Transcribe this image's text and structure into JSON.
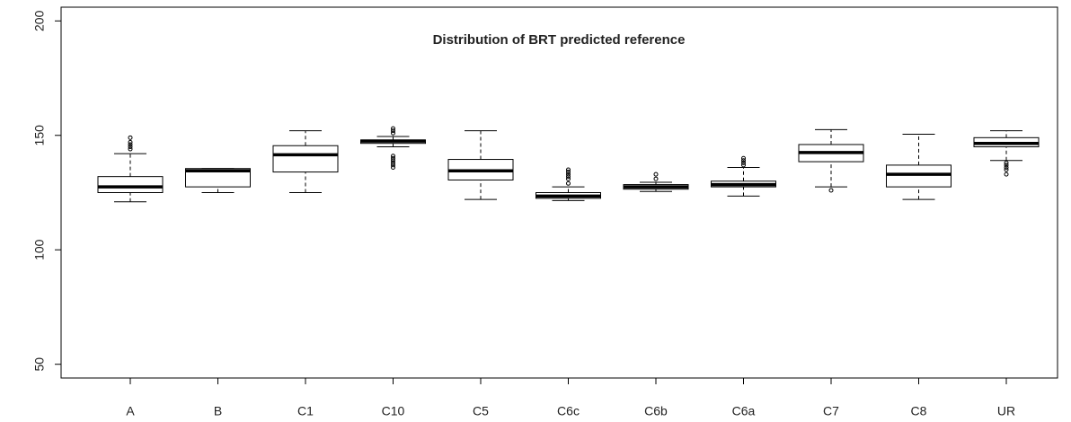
{
  "chart_data": {
    "type": "boxplot",
    "title": "Distribution of BRT predicted reference",
    "categories": [
      "A",
      "B",
      "C1",
      "C10",
      "C5",
      "C6c",
      "C6b",
      "C6a",
      "C7",
      "C8",
      "UR"
    ],
    "boxes": [
      {
        "min": 121,
        "q1": 125,
        "median": 127.5,
        "q3": 132,
        "max": 142,
        "outliers": [
          144,
          145,
          146,
          147,
          149
        ]
      },
      {
        "min": 125,
        "q1": 127.5,
        "median": 134.5,
        "q3": 135.5,
        "max": 135.5,
        "outliers": []
      },
      {
        "min": 125,
        "q1": 134,
        "median": 141.5,
        "q3": 145.5,
        "max": 152,
        "outliers": []
      },
      {
        "min": 145,
        "q1": 146.5,
        "median": 147.5,
        "q3": 148,
        "max": 149.5,
        "outliers": [
          136,
          137,
          138,
          139,
          140,
          141,
          151,
          152,
          153
        ]
      },
      {
        "min": 122,
        "q1": 130.5,
        "median": 134.5,
        "q3": 139.5,
        "max": 152,
        "outliers": []
      },
      {
        "min": 121.5,
        "q1": 122.5,
        "median": 123.5,
        "q3": 125,
        "max": 127.5,
        "outliers": [
          129,
          131,
          132,
          133,
          134,
          135
        ]
      },
      {
        "min": 125.5,
        "q1": 126.5,
        "median": 127.5,
        "q3": 128.5,
        "max": 129.5,
        "outliers": [
          131,
          133
        ]
      },
      {
        "min": 123.5,
        "q1": 127.5,
        "median": 128.5,
        "q3": 130,
        "max": 136,
        "outliers": [
          137,
          138,
          139,
          140
        ]
      },
      {
        "min": 127.5,
        "q1": 138.5,
        "median": 142.5,
        "q3": 146,
        "max": 152.5,
        "outliers": [
          126
        ]
      },
      {
        "min": 122,
        "q1": 127.5,
        "median": 133,
        "q3": 137,
        "max": 150.5,
        "outliers": []
      },
      {
        "min": 139,
        "q1": 145,
        "median": 146.5,
        "q3": 149,
        "max": 152,
        "outliers": [
          133,
          135,
          136,
          137,
          138
        ]
      }
    ],
    "color": "#000000",
    "ylim": [
      44,
      206
    ],
    "yticks": [
      50,
      100,
      150,
      200
    ]
  }
}
